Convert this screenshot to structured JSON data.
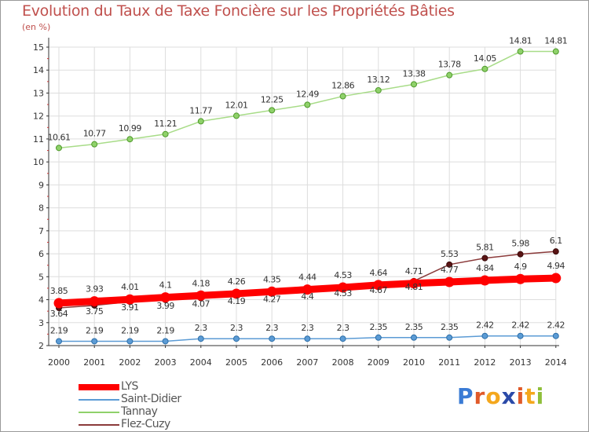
{
  "chart_data": {
    "type": "line",
    "title": "Evolution du Taux de Taxe Foncière sur les Propriétés Bâties",
    "ylabel": "(en %)",
    "xlabel": "",
    "ylim": [
      2,
      15
    ],
    "yticks": [
      "2",
      "3",
      "4",
      "5",
      "6",
      "7",
      "8",
      "9",
      "10",
      "11",
      "12",
      "13",
      "14",
      "15"
    ],
    "categories": [
      "2000",
      "2001",
      "2002",
      "2003",
      "2004",
      "2005",
      "2006",
      "2007",
      "2008",
      "2009",
      "2010",
      "2011",
      "2012",
      "2013",
      "2014"
    ],
    "series": [
      {
        "name": "LYS",
        "color": "#ff0000",
        "values": [
          3.85,
          3.93,
          4.01,
          4.1,
          4.18,
          4.26,
          4.35,
          4.44,
          4.53,
          4.64,
          4.71,
          4.77,
          4.84,
          4.9,
          4.94
        ],
        "labels": [
          "3.85",
          "3.93",
          "4.01",
          "4.1",
          "4.18",
          "4.26",
          "4.35",
          "4.44",
          "4.53",
          "4.64",
          "4.71",
          "4.77",
          "4.84",
          "4.9",
          "4.94"
        ]
      },
      {
        "name": "Saint-Didier",
        "color": "#5b9bd5",
        "values": [
          2.19,
          2.19,
          2.19,
          2.19,
          2.3,
          2.3,
          2.3,
          2.3,
          2.3,
          2.35,
          2.35,
          2.35,
          2.42,
          2.42,
          2.42
        ],
        "labels": [
          "2.19",
          "2.19",
          "2.19",
          "2.19",
          "2.3",
          "2.3",
          "2.3",
          "2.3",
          "2.3",
          "2.35",
          "2.35",
          "2.35",
          "2.42",
          "2.42",
          "2.42"
        ]
      },
      {
        "name": "Tannay",
        "color": "#8fd16a",
        "values": [
          10.61,
          10.77,
          10.99,
          11.21,
          11.77,
          12.01,
          12.25,
          12.49,
          12.86,
          13.12,
          13.38,
          13.78,
          14.05,
          14.81,
          14.81
        ],
        "labels": [
          "10.61",
          "10.77",
          "10.99",
          "11.21",
          "11.77",
          "12.01",
          "12.25",
          "12.49",
          "12.86",
          "13.12",
          "13.38",
          "13.78",
          "14.05",
          "14.81",
          "14.81"
        ]
      },
      {
        "name": "Flez-Cuzy",
        "color": "#8b3a3a",
        "values": [
          3.64,
          3.75,
          3.91,
          3.99,
          4.07,
          4.19,
          4.27,
          4.4,
          4.53,
          4.67,
          4.81,
          5.53,
          5.81,
          5.98,
          6.1
        ],
        "labels": [
          "3.64",
          "3.75",
          "3.91",
          "3.99",
          "4.07",
          "4.19",
          "4.27",
          "4.4",
          "4.53",
          "4.67",
          "4.81",
          "5.53",
          "5.81",
          "5.98",
          "6.1"
        ]
      }
    ],
    "legend_position": "bottom-left"
  },
  "legend": {
    "items": [
      {
        "label": "LYS"
      },
      {
        "label": "Saint-Didier"
      },
      {
        "label": "Tannay"
      },
      {
        "label": "Flez-Cuzy"
      }
    ]
  },
  "logo": {
    "text": "Proxiti",
    "letters": [
      "P",
      "r",
      "o",
      "x",
      "i",
      "t",
      "i"
    ],
    "colors": [
      "#3a7bd5",
      "#e05a2a",
      "#f4a71d",
      "#2b4aa8",
      "#e05a2a",
      "#f4a71d",
      "#8fbf3a"
    ]
  }
}
